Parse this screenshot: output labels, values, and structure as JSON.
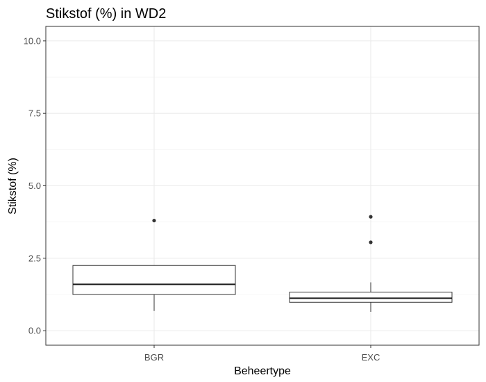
{
  "chart_data": {
    "type": "boxplot",
    "title": "Stikstof (%) in WD2",
    "xlabel": "Beheertype",
    "ylabel": "Stikstof (%)",
    "ylim": [
      -0.5,
      10.5
    ],
    "y_ticks": [
      0.0,
      2.5,
      5.0,
      7.5,
      10.0
    ],
    "y_tick_labels": [
      "0.0",
      "2.5",
      "5.0",
      "7.5",
      "10.0"
    ],
    "grid": true,
    "categories": [
      "BGR",
      "EXC"
    ],
    "boxes": [
      {
        "category": "BGR",
        "whisker_low": 0.68,
        "q1": 1.25,
        "median": 1.6,
        "q3": 2.25,
        "whisker_high": 2.25,
        "outliers": [
          3.8
        ]
      },
      {
        "category": "EXC",
        "whisker_low": 0.65,
        "q1": 0.98,
        "median": 1.12,
        "q3": 1.33,
        "whisker_high": 1.67,
        "outliers": [
          3.05,
          3.93
        ]
      }
    ]
  }
}
